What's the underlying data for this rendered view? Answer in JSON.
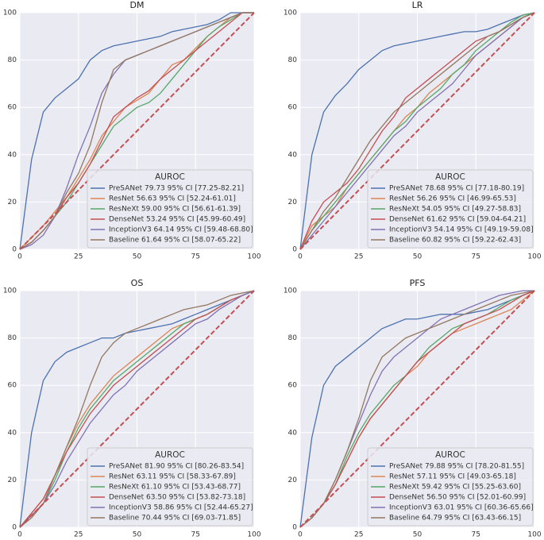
{
  "chart_data": [
    {
      "type": "line",
      "title": "DM",
      "legend_title": "AUROC",
      "legend": "lower right",
      "grid": true,
      "xlim": [
        0,
        100
      ],
      "ylim": [
        0,
        100
      ],
      "xticks": [
        0,
        25,
        50,
        75,
        100
      ],
      "yticks": [
        0,
        20,
        40,
        60,
        80,
        100
      ],
      "reference_line": {
        "color": "#c44e52",
        "style": "dashed"
      },
      "x": [
        0,
        5,
        10,
        15,
        20,
        25,
        30,
        35,
        40,
        45,
        50,
        55,
        60,
        65,
        70,
        75,
        80,
        85,
        90,
        95,
        100
      ],
      "series": [
        {
          "name": "PreSANet 79.73 95% CI [77.25-82.21]",
          "color": "#4c72b0",
          "values": [
            0,
            38,
            58,
            64,
            68,
            72,
            80,
            84,
            86,
            87,
            88,
            89,
            90,
            92,
            93,
            94,
            95,
            97,
            100,
            100,
            100
          ]
        },
        {
          "name": "ResNet 56.63 95% CI [52.24-61.01]",
          "color": "#dd8452",
          "values": [
            0,
            5,
            10,
            16,
            22,
            30,
            38,
            48,
            54,
            60,
            63,
            66,
            72,
            78,
            80,
            85,
            90,
            94,
            98,
            100,
            100
          ]
        },
        {
          "name": "ResNeXt 59.00 95% CI [56.61-61.39]",
          "color": "#55a868",
          "values": [
            0,
            3,
            8,
            14,
            20,
            28,
            36,
            44,
            52,
            56,
            60,
            62,
            66,
            72,
            78,
            84,
            90,
            94,
            97,
            100,
            100
          ]
        },
        {
          "name": "DenseNet 53.24 95% CI [45.99-60.49]",
          "color": "#c44e52",
          "values": [
            0,
            3,
            8,
            14,
            22,
            28,
            36,
            46,
            56,
            60,
            64,
            67,
            72,
            76,
            80,
            84,
            88,
            92,
            96,
            100,
            100
          ]
        },
        {
          "name": "InceptionV3 64.14 95% CI [59.48-68.80]",
          "color": "#8172b3",
          "values": [
            0,
            2,
            6,
            14,
            26,
            40,
            52,
            66,
            74,
            80,
            82,
            84,
            86,
            88,
            90,
            92,
            94,
            96,
            98,
            100,
            100
          ]
        },
        {
          "name": "Baseline 61.64 95% CI [58.07-65.22]",
          "color": "#937860",
          "values": [
            0,
            3,
            8,
            14,
            24,
            32,
            44,
            62,
            76,
            80,
            82,
            84,
            86,
            88,
            90,
            92,
            94,
            96,
            98,
            100,
            100
          ]
        }
      ]
    },
    {
      "type": "line",
      "title": "LR",
      "legend_title": "AUROC",
      "legend": "lower right",
      "grid": true,
      "xlim": [
        0,
        100
      ],
      "ylim": [
        0,
        100
      ],
      "xticks": [
        0,
        25,
        50,
        75,
        100
      ],
      "yticks": [
        0,
        20,
        40,
        60,
        80,
        100
      ],
      "reference_line": {
        "color": "#c44e52",
        "style": "dashed"
      },
      "x": [
        0,
        5,
        10,
        15,
        20,
        25,
        30,
        35,
        40,
        45,
        50,
        55,
        60,
        65,
        70,
        75,
        80,
        85,
        90,
        95,
        100
      ],
      "series": [
        {
          "name": "PreSANet 78.68 95% CI [77.18-80.19]",
          "color": "#4c72b0",
          "values": [
            0,
            40,
            58,
            65,
            70,
            76,
            80,
            84,
            86,
            87,
            88,
            89,
            90,
            91,
            92,
            92,
            93,
            95,
            97,
            99,
            100
          ]
        },
        {
          "name": "ResNet 56.26 95% CI [46.99-65.53]",
          "color": "#dd8452",
          "values": [
            0,
            10,
            14,
            18,
            26,
            32,
            38,
            44,
            50,
            56,
            60,
            66,
            70,
            74,
            78,
            82,
            86,
            90,
            94,
            98,
            100
          ]
        },
        {
          "name": "ResNeXt 54.05 95% CI [49.27-58.83]",
          "color": "#55a868",
          "values": [
            0,
            8,
            14,
            20,
            26,
            32,
            38,
            44,
            50,
            54,
            60,
            64,
            68,
            74,
            78,
            84,
            88,
            92,
            96,
            99,
            100
          ]
        },
        {
          "name": "DenseNet 61.62 95% CI [59.04-64.21]",
          "color": "#c44e52",
          "values": [
            0,
            12,
            20,
            24,
            28,
            34,
            42,
            50,
            56,
            64,
            68,
            72,
            76,
            80,
            84,
            88,
            90,
            92,
            95,
            98,
            100
          ]
        },
        {
          "name": "InceptionV3 54.14 95% CI [49.19-59.08]",
          "color": "#8172b3",
          "values": [
            0,
            6,
            12,
            18,
            24,
            30,
            36,
            42,
            48,
            52,
            58,
            62,
            66,
            70,
            76,
            82,
            86,
            90,
            94,
            98,
            100
          ]
        },
        {
          "name": "Baseline 60.82 95% CI [59.22-62.43]",
          "color": "#937860",
          "values": [
            0,
            8,
            16,
            22,
            30,
            38,
            46,
            52,
            58,
            62,
            66,
            70,
            74,
            78,
            82,
            86,
            90,
            92,
            95,
            98,
            100
          ]
        }
      ]
    },
    {
      "type": "line",
      "title": "OS",
      "legend_title": "AUROC",
      "legend": "lower right",
      "grid": true,
      "xlim": [
        0,
        100
      ],
      "ylim": [
        0,
        100
      ],
      "xticks": [
        0,
        25,
        50,
        75,
        100
      ],
      "yticks": [
        0,
        20,
        40,
        60,
        80,
        100
      ],
      "reference_line": {
        "color": "#c44e52",
        "style": "dashed"
      },
      "x": [
        0,
        5,
        10,
        15,
        20,
        25,
        30,
        35,
        40,
        45,
        50,
        55,
        60,
        65,
        70,
        75,
        80,
        85,
        90,
        95,
        100
      ],
      "series": [
        {
          "name": "PreSANet 81.90 95% CI [80.26-83.54]",
          "color": "#4c72b0",
          "values": [
            0,
            40,
            62,
            70,
            74,
            76,
            78,
            80,
            80,
            82,
            83,
            84,
            85,
            86,
            88,
            90,
            92,
            94,
            96,
            98,
            100
          ]
        },
        {
          "name": "ResNet 63.11 95% CI [58.33-67.89]",
          "color": "#dd8452",
          "values": [
            0,
            6,
            12,
            22,
            34,
            44,
            52,
            58,
            64,
            68,
            72,
            76,
            80,
            84,
            86,
            88,
            90,
            93,
            96,
            98,
            100
          ]
        },
        {
          "name": "ResNeXt 61.10 95% CI [53.43-68.77]",
          "color": "#55a868",
          "values": [
            0,
            5,
            10,
            20,
            32,
            42,
            50,
            56,
            62,
            66,
            70,
            74,
            78,
            82,
            86,
            88,
            90,
            93,
            96,
            98,
            100
          ]
        },
        {
          "name": "DenseNet 63.50 95% CI [53.82-73.18]",
          "color": "#c44e52",
          "values": [
            0,
            6,
            12,
            22,
            32,
            40,
            48,
            54,
            60,
            64,
            68,
            72,
            76,
            80,
            84,
            88,
            90,
            93,
            96,
            98,
            100
          ]
        },
        {
          "name": "InceptionV3 58.86 95% CI [52.44-65.27]",
          "color": "#8172b3",
          "values": [
            0,
            5,
            10,
            18,
            28,
            36,
            44,
            50,
            56,
            60,
            66,
            70,
            74,
            78,
            82,
            86,
            88,
            92,
            95,
            98,
            100
          ]
        },
        {
          "name": "Baseline 70.44 95% CI [69.03-71.85]",
          "color": "#937860",
          "values": [
            0,
            4,
            10,
            22,
            34,
            46,
            60,
            72,
            78,
            82,
            84,
            86,
            88,
            90,
            92,
            93,
            94,
            96,
            98,
            99,
            100
          ]
        }
      ]
    },
    {
      "type": "line",
      "title": "PFS",
      "legend_title": "AUROC",
      "legend": "lower right",
      "grid": true,
      "xlim": [
        0,
        100
      ],
      "ylim": [
        0,
        100
      ],
      "xticks": [
        0,
        25,
        50,
        75,
        100
      ],
      "yticks": [
        0,
        20,
        40,
        60,
        80,
        100
      ],
      "reference_line": {
        "color": "#c44e52",
        "style": "dashed"
      },
      "x": [
        0,
        5,
        10,
        15,
        20,
        25,
        30,
        35,
        40,
        45,
        50,
        55,
        60,
        65,
        70,
        75,
        80,
        85,
        90,
        95,
        100
      ],
      "series": [
        {
          "name": "PreSANet 79.88 95% CI [78.20-81.55]",
          "color": "#4c72b0",
          "values": [
            0,
            38,
            60,
            68,
            72,
            76,
            80,
            84,
            86,
            88,
            88,
            89,
            90,
            90,
            90,
            91,
            92,
            94,
            96,
            98,
            100
          ]
        },
        {
          "name": "ResNet 57.11 95% CI [49.03-65.18]",
          "color": "#dd8452",
          "values": [
            0,
            4,
            10,
            18,
            28,
            38,
            46,
            52,
            58,
            64,
            68,
            74,
            78,
            82,
            84,
            86,
            88,
            90,
            92,
            96,
            100
          ]
        },
        {
          "name": "ResNeXt 59.42 95% CI [55.25-63.60]",
          "color": "#55a868",
          "values": [
            0,
            4,
            10,
            18,
            30,
            40,
            48,
            54,
            60,
            64,
            70,
            76,
            80,
            84,
            86,
            88,
            90,
            93,
            96,
            98,
            100
          ]
        },
        {
          "name": "DenseNet 56.50 95% CI [52.01-60.99]",
          "color": "#c44e52",
          "values": [
            0,
            4,
            10,
            18,
            28,
            38,
            46,
            52,
            58,
            64,
            70,
            74,
            78,
            82,
            86,
            88,
            90,
            92,
            95,
            98,
            100
          ]
        },
        {
          "name": "InceptionV3 63.01 95% CI [60.36-65.66]",
          "color": "#8172b3",
          "values": [
            0,
            4,
            10,
            20,
            32,
            44,
            56,
            66,
            72,
            76,
            80,
            84,
            88,
            90,
            92,
            94,
            96,
            98,
            99,
            100,
            100
          ]
        },
        {
          "name": "Baseline 64.79 95% CI [63.43-66.15]",
          "color": "#937860",
          "values": [
            0,
            4,
            10,
            20,
            32,
            46,
            62,
            72,
            76,
            80,
            82,
            84,
            86,
            88,
            90,
            92,
            94,
            96,
            98,
            99,
            100
          ]
        }
      ]
    }
  ]
}
